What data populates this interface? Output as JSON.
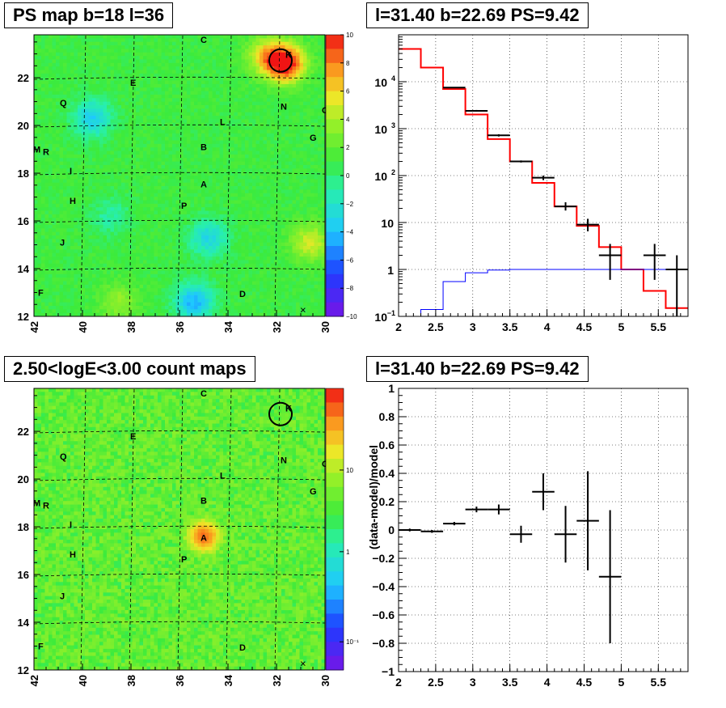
{
  "panels": [
    {
      "title": "PS map b=18 l=36",
      "kind": "skymap",
      "colorscale": "rainbow-linear",
      "color_bar": {
        "min": -10,
        "max": 10,
        "ticks": [
          "10",
          "8",
          "6",
          "4",
          "2",
          "0",
          "−2",
          "−4",
          "−6",
          "−8",
          "−10"
        ]
      },
      "xaxis": {
        "ticks": [
          "42",
          "40",
          "38",
          "36",
          "34",
          "32",
          "30"
        ],
        "range": [
          42,
          30
        ]
      },
      "yaxis": {
        "ticks": [
          "12",
          "14",
          "16",
          "18",
          "20",
          "22"
        ],
        "range": [
          12,
          23.8
        ]
      },
      "background_color": "#33ee33",
      "hotspot_color": "#ee2222"
    },
    {
      "title": "l=31.40 b=22.69 PS=9.42",
      "kind": "spectrum",
      "yscale": "log"
    },
    {
      "title": "2.50<logE<3.00 count maps",
      "kind": "skymap",
      "colorscale": "rainbow-log",
      "color_bar": {
        "ticks": [
          "10",
          "1",
          "10⁻¹"
        ]
      },
      "xaxis": {
        "ticks": [
          "42",
          "40",
          "38",
          "36",
          "34",
          "32",
          "30"
        ],
        "range": [
          42,
          30
        ]
      },
      "yaxis": {
        "ticks": [
          "12",
          "14",
          "16",
          "18",
          "20",
          "22"
        ],
        "range": [
          12,
          23.8
        ]
      },
      "background_color": "#f2c43a",
      "hotspot_color": "#e04020"
    },
    {
      "title": "l=31.40 b=22.69 PS=9.42",
      "kind": "residual",
      "ylabel": "(data-model)/model"
    }
  ],
  "source_labels": [
    {
      "name": "C",
      "l": 35.0,
      "b": 23.6
    },
    {
      "name": "E",
      "l": 37.9,
      "b": 21.8
    },
    {
      "name": "Q",
      "l": 40.8,
      "b": 20.95
    },
    {
      "name": "N",
      "l": 31.7,
      "b": 20.8
    },
    {
      "name": "O",
      "l": 30.0,
      "b": 20.65
    },
    {
      "name": "L",
      "l": 34.2,
      "b": 20.15
    },
    {
      "name": "G",
      "l": 30.5,
      "b": 19.5
    },
    {
      "name": "B",
      "l": 35.0,
      "b": 19.1
    },
    {
      "name": "M",
      "l": 41.9,
      "b": 19.0
    },
    {
      "name": "R",
      "l": 41.5,
      "b": 18.9
    },
    {
      "name": "I",
      "l": 40.4,
      "b": 18.1
    },
    {
      "name": "A",
      "l": 35.0,
      "b": 17.55
    },
    {
      "name": "H",
      "l": 40.4,
      "b": 16.85
    },
    {
      "name": "P",
      "l": 35.8,
      "b": 16.65
    },
    {
      "name": "J",
      "l": 40.8,
      "b": 15.1
    },
    {
      "name": "D",
      "l": 33.4,
      "b": 12.95
    },
    {
      "name": "F",
      "l": 41.7,
      "b": 13.0
    }
  ],
  "circled_source": {
    "name": "K",
    "l": 31.8,
    "b": 22.69
  },
  "cross_marker": {
    "l": 30.9,
    "b": 12.25
  },
  "chart_data": [
    {
      "type": "heatmap",
      "title": "PS map b=18 l=36",
      "xlabel": "",
      "ylabel": "",
      "xlim": [
        42,
        30
      ],
      "ylim": [
        12,
        23.8
      ],
      "zlim": [
        -10,
        10
      ],
      "description_of_values": "PS significance map; mostly 0..2, peak ~9.4 at l=31.4 b=22.7, dips to ~-5 near l=39.5 b=20.3 and l=35.2 b=12.8",
      "hotspots": [
        {
          "l": 31.6,
          "b": 22.6,
          "value": 9.4
        },
        {
          "l": 32.4,
          "b": 22.9,
          "value": 5.0
        },
        {
          "l": 30.6,
          "b": 15.1,
          "value": 4.0
        },
        {
          "l": 38.5,
          "b": 12.6,
          "value": 2.5
        },
        {
          "l": 39.6,
          "b": 20.3,
          "value": -4.5
        },
        {
          "l": 35.4,
          "b": 12.6,
          "value": -5.5
        },
        {
          "l": 34.8,
          "b": 15.3,
          "value": -4.0
        },
        {
          "l": 38.8,
          "b": 16.2,
          "value": -2.0
        }
      ],
      "grid": true
    },
    {
      "type": "line",
      "title": "l=31.40 b=22.69 PS=9.42",
      "xlabel": "",
      "ylabel": "",
      "xlim": [
        2,
        5.9
      ],
      "ylim": [
        0.1,
        100000
      ],
      "yscale": "log",
      "grid": true,
      "series": [
        {
          "kind": "step",
          "color": "#ff0000",
          "edges": [
            2.0,
            2.3,
            2.6,
            2.9,
            3.2,
            3.5,
            3.8,
            4.1,
            4.4,
            4.7,
            5.0,
            5.3,
            5.6,
            5.9
          ],
          "values": [
            50000,
            20000,
            7000,
            2000,
            600,
            200,
            70,
            22,
            8.5,
            3.0,
            1.0,
            0.35,
            0.15
          ]
        },
        {
          "kind": "step",
          "color": "#0000ff",
          "edges": [
            2.0,
            2.3,
            2.6,
            2.9,
            3.2,
            3.5,
            3.8,
            4.1,
            4.4,
            4.7,
            5.0,
            5.3,
            5.6,
            5.9
          ],
          "values": [
            0.1,
            0.14,
            0.55,
            0.85,
            0.97,
            1.0,
            1.0,
            1.0,
            1.0,
            1.0,
            1.0,
            1.0,
            1.0
          ]
        },
        {
          "kind": "errorbars",
          "color": "#000000",
          "x": [
            2.75,
            3.05,
            3.35,
            3.65,
            3.95,
            4.25,
            4.55,
            4.85,
            5.45,
            5.75
          ],
          "xerr": 0.15,
          "y": [
            7500,
            2400,
            720,
            200,
            90,
            22,
            9,
            2.0,
            2.0,
            1.0
          ],
          "ylo": [
            7300,
            2300,
            680,
            190,
            80,
            18,
            6.5,
            0.6,
            0.6,
            0.1
          ],
          "yhi": [
            7700,
            2500,
            760,
            210,
            100,
            27,
            12,
            3.5,
            3.5,
            2.0
          ]
        }
      ]
    },
    {
      "type": "heatmap",
      "title": "2.50<logE<3.00 count maps",
      "xlabel": "",
      "ylabel": "",
      "xlim": [
        42,
        30
      ],
      "ylim": [
        12,
        23.8
      ],
      "zscale": "log",
      "description_of_values": "photon count map, roughly uniform ~2-4 counts per pixel with an enhancement up to ~20 at source A (l=35.0 b=17.55)",
      "hotspots": [
        {
          "l": 35.0,
          "b": 17.6,
          "value": 20
        },
        {
          "l": 30.4,
          "b": 12.6,
          "value": 1.0
        }
      ],
      "grid": true
    },
    {
      "type": "scatter",
      "title": "l=31.40 b=22.69 PS=9.42",
      "xlabel": "",
      "ylabel": "(data-model)/model",
      "xlim": [
        2,
        5.9
      ],
      "ylim": [
        -1,
        1
      ],
      "grid": true,
      "series": [
        {
          "kind": "errorbars",
          "color": "#000000",
          "x": [
            2.15,
            2.45,
            2.75,
            3.05,
            3.35,
            3.65,
            3.95,
            4.25,
            4.55,
            4.85
          ],
          "xerr": 0.15,
          "y": [
            0.0,
            -0.01,
            0.045,
            0.145,
            0.145,
            -0.03,
            0.27,
            -0.03,
            0.065,
            -0.33
          ],
          "yerr": [
            0.01,
            0.01,
            0.012,
            0.02,
            0.035,
            0.06,
            0.13,
            0.2,
            0.35,
            0.47
          ]
        }
      ]
    }
  ]
}
